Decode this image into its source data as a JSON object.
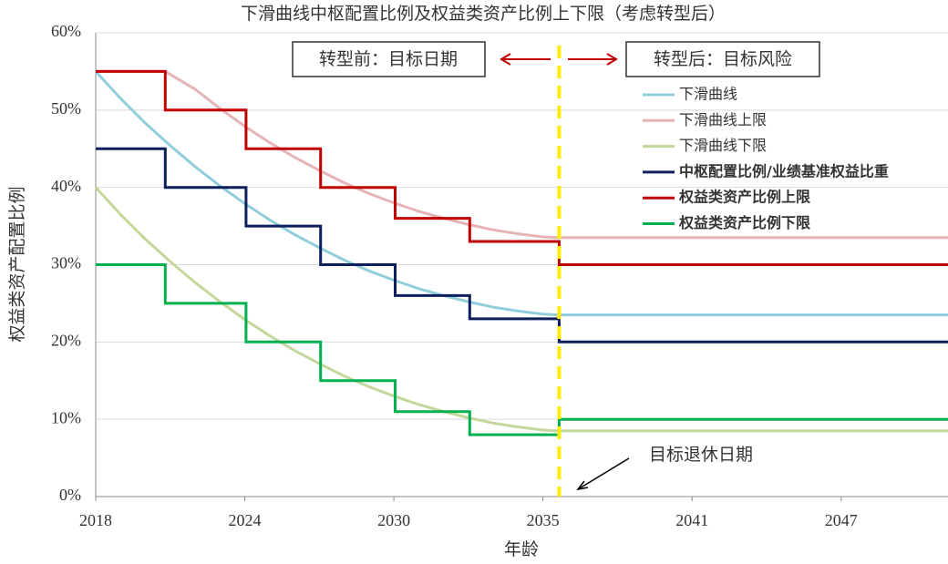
{
  "chart_data": {
    "type": "line",
    "title": "下滑曲线中枢配置比例及权益类资产比例上下限（考虑转型后）",
    "x_label": "年龄",
    "y_label": "权益类资产配置比例",
    "xlim": [
      2018,
      2052.3
    ],
    "ylim": [
      0,
      60
    ],
    "xticks": [
      2018,
      2024,
      2030,
      {
        "value": 2036,
        "label": "2035"
      },
      {
        "value": 2042,
        "label": "2041"
      },
      {
        "value": 2048,
        "label": "2047"
      }
    ],
    "yticks": [
      {
        "value": 0,
        "label": "0%"
      },
      {
        "value": 10,
        "label": "10%"
      },
      {
        "value": 20,
        "label": "20%"
      },
      {
        "value": 30,
        "label": "30%"
      },
      {
        "value": 40,
        "label": "40%"
      },
      {
        "value": 50,
        "label": "50%"
      },
      {
        "value": 60,
        "label": "60%"
      }
    ],
    "vline": {
      "x": 2036.65,
      "color": "#ffec00"
    },
    "annotations": [
      "转型前：目标日期",
      "转型后：目标风险",
      "目标退休日期"
    ],
    "series": [
      {
        "name": "下滑曲线",
        "color": "#92cddc",
        "bold": false,
        "x": [
          2018,
          2019,
          2020,
          2021,
          2022,
          2023,
          2024,
          2025,
          2026,
          2027,
          2028,
          2029,
          2030,
          2031,
          2032,
          2033,
          2034,
          2035,
          2036,
          2036.6,
          2052.3
        ],
        "values": [
          55,
          51.5,
          48.3,
          45.4,
          42.7,
          40.2,
          37.9,
          35.8,
          33.9,
          32.2,
          30.6,
          29.2,
          28.0,
          26.9,
          26.0,
          25.2,
          24.5,
          24.0,
          23.6,
          23.5,
          23.5
        ]
      },
      {
        "name": "下滑曲线上限",
        "color": "#e6b4b4",
        "bold": false,
        "x": [
          2018,
          2020.8,
          2022,
          2023,
          2024,
          2025,
          2026,
          2027,
          2028,
          2029,
          2030,
          2031,
          2032,
          2033,
          2034,
          2035,
          2036,
          2036.6,
          2052.3
        ],
        "values": [
          55,
          55,
          52.7,
          50.2,
          47.9,
          45.8,
          43.9,
          42.2,
          40.6,
          39.2,
          38.0,
          36.9,
          36.0,
          35.2,
          34.5,
          34.0,
          33.6,
          33.5,
          33.5
        ]
      },
      {
        "name": "下滑曲线下限",
        "color": "#c4d79b",
        "bold": false,
        "x": [
          2018,
          2019,
          2020,
          2021,
          2022,
          2023,
          2024,
          2025,
          2026,
          2027,
          2028,
          2029,
          2030,
          2031,
          2032,
          2033,
          2034,
          2035,
          2036,
          2036.6,
          2052.3
        ],
        "values": [
          40,
          36.5,
          33.3,
          30.4,
          27.7,
          25.2,
          22.9,
          20.8,
          18.9,
          17.2,
          15.6,
          14.2,
          13.0,
          11.9,
          11.0,
          10.2,
          9.5,
          9.0,
          8.6,
          8.5,
          8.5
        ]
      },
      {
        "name": "中枢配置比例/业绩基准权益比重",
        "color": "#0d1f5c",
        "bold": true,
        "x": [
          2018,
          2020.8,
          2020.8,
          2024.05,
          2024.05,
          2027.05,
          2027.05,
          2030.05,
          2030.05,
          2033.05,
          2033.05,
          2036.65,
          2036.65,
          2052.3
        ],
        "values": [
          45,
          45,
          40,
          40,
          35,
          35,
          30,
          30,
          26,
          26,
          23,
          23,
          20,
          20
        ]
      },
      {
        "name": "权益类资产比例上限",
        "color": "#c00000",
        "bold": true,
        "x": [
          2018,
          2020.8,
          2020.8,
          2024.05,
          2024.05,
          2027.05,
          2027.05,
          2030.05,
          2030.05,
          2033.05,
          2033.05,
          2036.65,
          2036.65,
          2052.3
        ],
        "values": [
          55,
          55,
          50,
          50,
          45,
          45,
          40,
          40,
          36,
          36,
          33,
          33,
          30,
          30
        ]
      },
      {
        "name": "权益类资产比例下限",
        "color": "#00b050",
        "bold": true,
        "x": [
          2018,
          2020.8,
          2020.8,
          2024.05,
          2024.05,
          2027.05,
          2027.05,
          2030.05,
          2030.05,
          2033.05,
          2033.05,
          2036.65,
          2036.65,
          2052.3
        ],
        "values": [
          30,
          30,
          25,
          25,
          20,
          20,
          15,
          15,
          11,
          11,
          8,
          8,
          10,
          10
        ]
      }
    ]
  }
}
